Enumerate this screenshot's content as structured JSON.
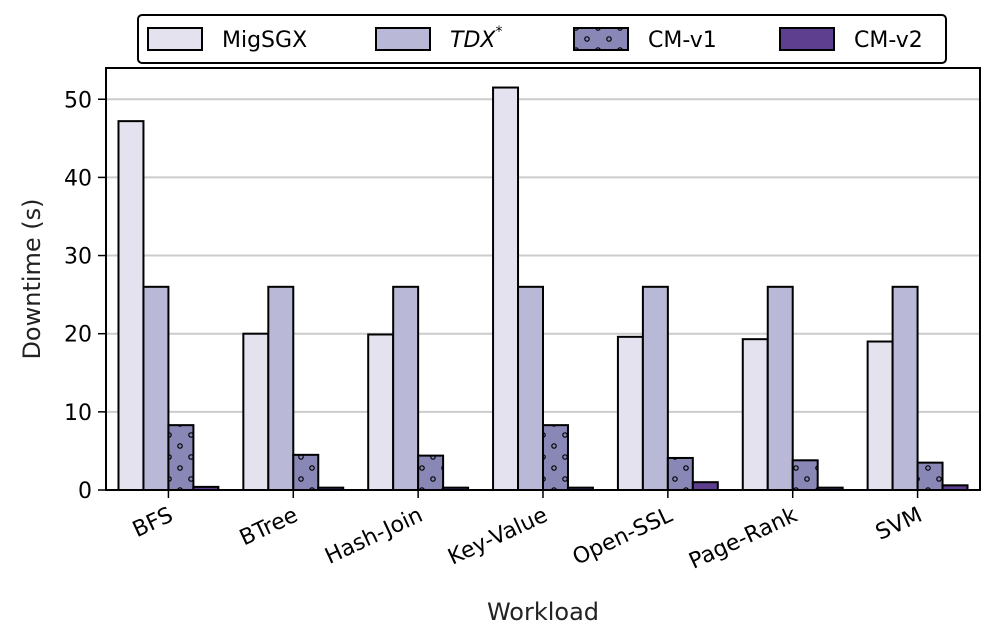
{
  "chart_data": {
    "type": "bar",
    "title": "",
    "xlabel": "Workload",
    "ylabel": "Downtime (s)",
    "ylim": [
      0,
      54
    ],
    "yticks": [
      0,
      10,
      20,
      30,
      40,
      50
    ],
    "grid": "horizontal",
    "legend_position": "top",
    "categories": [
      "BFS",
      "BTree",
      "Hash-Join",
      "Key-Value",
      "Open-SSL",
      "Page-Rank",
      "SVM"
    ],
    "series": [
      {
        "name": "MigSGX",
        "values": [
          47.2,
          20.0,
          19.9,
          51.5,
          19.6,
          19.3,
          19.0
        ],
        "color": "#e4e2ee"
      },
      {
        "name": "TDX",
        "name_superscript": "*",
        "values": [
          26.0,
          26.0,
          26.0,
          26.0,
          26.0,
          26.0,
          26.0
        ],
        "color": "#b9b8d6"
      },
      {
        "name": "CM-v1",
        "values": [
          8.3,
          4.5,
          4.4,
          8.3,
          4.1,
          3.8,
          3.5
        ],
        "color": "#8987b6",
        "hatch": "dots"
      },
      {
        "name": "CM-v2",
        "values": [
          0.4,
          0.3,
          0.3,
          0.3,
          1.0,
          0.3,
          0.6
        ],
        "color": "#5e3f8f"
      }
    ]
  }
}
